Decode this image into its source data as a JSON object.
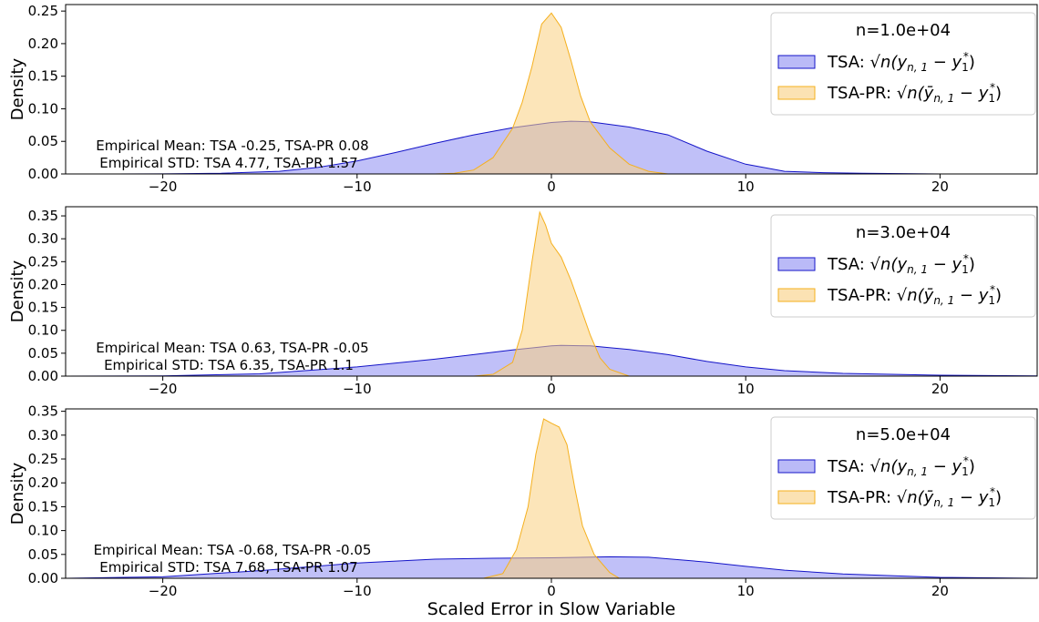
{
  "figure": {
    "xlabel": "Scaled Error in Slow Variable",
    "ylabel": "Density"
  },
  "colors": {
    "tsa_fill": "#8c8cf2",
    "tsa_line": "#1414c8",
    "pr_fill": "#f9cf80",
    "pr_line": "#f5b01e"
  },
  "chart_data": [
    {
      "type": "area",
      "legend_title": "n=1.0e+04",
      "legend_placement": "top-right",
      "xlim": [
        -25,
        25
      ],
      "ylim": [
        0,
        0.26
      ],
      "xticks": [
        -20,
        -10,
        0,
        10,
        20
      ],
      "yticks": [
        0.0,
        0.05,
        0.1,
        0.15,
        0.2,
        0.25
      ],
      "annotations": [
        "Empirical Mean: TSA -0.25, TSA-PR 0.08",
        "Empirical STD: TSA 4.77, TSA-PR 1.57"
      ],
      "series": [
        {
          "name": "TSA: √n(y_{n,1} − y_1^*)",
          "legend_prefix": "TSA: ",
          "legend_main": "√n(y",
          "legend_sub": "n, 1",
          "legend_rest": " − y",
          "legend_sub2": "1",
          "legend_sup2": "*",
          "legend_end": ")",
          "x": [
            -25,
            -20,
            -17,
            -14,
            -12,
            -10,
            -8,
            -6,
            -4,
            -2,
            0,
            1,
            2,
            4,
            6,
            8,
            10,
            12,
            14,
            16,
            18,
            20,
            25
          ],
          "y": [
            0.0,
            0.0002,
            0.001,
            0.004,
            0.01,
            0.02,
            0.033,
            0.047,
            0.06,
            0.071,
            0.079,
            0.081,
            0.08,
            0.072,
            0.06,
            0.035,
            0.015,
            0.004,
            0.002,
            0.001,
            0.0005,
            0.0,
            0.0
          ]
        },
        {
          "name": "TSA-PR: √n(ȳ_{n,1} − y_1^*)",
          "legend_prefix": "TSA-PR: ",
          "legend_main": "√n(ȳ",
          "legend_sub": "n, 1",
          "legend_rest": " − y",
          "legend_sub2": "1",
          "legend_sup2": "*",
          "legend_end": ")",
          "x": [
            -25,
            -6,
            -5,
            -4,
            -3,
            -2,
            -1.5,
            -1,
            -0.5,
            0,
            0.5,
            1,
            1.5,
            2,
            3,
            4,
            5,
            6,
            25
          ],
          "y": [
            0.0,
            0.0,
            0.001,
            0.006,
            0.025,
            0.07,
            0.11,
            0.165,
            0.23,
            0.247,
            0.225,
            0.175,
            0.12,
            0.08,
            0.04,
            0.015,
            0.004,
            0.0,
            0.0
          ]
        }
      ]
    },
    {
      "type": "area",
      "legend_title": "n=3.0e+04",
      "legend_placement": "top-right",
      "xlim": [
        -25,
        25
      ],
      "ylim": [
        0,
        0.37
      ],
      "xticks": [
        -20,
        -10,
        0,
        10,
        20
      ],
      "yticks": [
        0.0,
        0.05,
        0.1,
        0.15,
        0.2,
        0.25,
        0.3,
        0.35
      ],
      "annotations": [
        "Empirical Mean: TSA 0.63, TSA-PR -0.05",
        "Empirical STD: TSA 6.35, TSA-PR 1.1"
      ],
      "series": [
        {
          "name": "TSA: √n(y_{n,1} − y_1^*)",
          "legend_prefix": "TSA: ",
          "legend_main": "√n(y",
          "legend_sub": "n, 1",
          "legend_rest": " − y",
          "legend_sub2": "1",
          "legend_sup2": "*",
          "legend_end": ")",
          "x": [
            -25,
            -20,
            -15,
            -10,
            -6,
            -4,
            -2,
            0,
            0.5,
            2,
            4,
            6,
            8,
            10,
            12,
            15,
            20,
            25
          ],
          "y": [
            0.0,
            0.0005,
            0.005,
            0.02,
            0.037,
            0.047,
            0.057,
            0.066,
            0.067,
            0.066,
            0.058,
            0.047,
            0.032,
            0.02,
            0.012,
            0.006,
            0.002,
            0.0005
          ]
        },
        {
          "name": "TSA-PR: √n(ȳ_{n,1} − y_1^*)",
          "legend_prefix": "TSA-PR: ",
          "legend_main": "√n(ȳ",
          "legend_sub": "n, 1",
          "legend_rest": " − y",
          "legend_sub2": "1",
          "legend_sup2": "*",
          "legend_end": ")",
          "x": [
            -25,
            -4,
            -3,
            -2,
            -1.5,
            -1,
            -0.6,
            -0.3,
            0,
            0.5,
            1,
            1.5,
            2,
            2.5,
            3,
            4,
            25
          ],
          "y": [
            0.0,
            0.0,
            0.004,
            0.03,
            0.1,
            0.25,
            0.358,
            0.33,
            0.29,
            0.26,
            0.21,
            0.15,
            0.09,
            0.04,
            0.015,
            0.0,
            0.0
          ]
        }
      ]
    },
    {
      "type": "area",
      "legend_title": "n=5.0e+04",
      "legend_placement": "top-right",
      "xlim": [
        -25,
        25
      ],
      "ylim": [
        0,
        0.355
      ],
      "xticks": [
        -20,
        -10,
        0,
        10,
        20
      ],
      "yticks": [
        0.0,
        0.05,
        0.1,
        0.15,
        0.2,
        0.25,
        0.3,
        0.35
      ],
      "annotations": [
        "Empirical Mean: TSA -0.68, TSA-PR -0.05",
        "Empirical STD: TSA 7.68, TSA-PR 1.07"
      ],
      "series": [
        {
          "name": "TSA: √n(y_{n,1} − y_1^*)",
          "legend_prefix": "TSA: ",
          "legend_main": "√n(y",
          "legend_sub": "n, 1",
          "legend_rest": " − y",
          "legend_sub2": "1",
          "legend_sup2": "*",
          "legend_end": ")",
          "x": [
            -25,
            -20,
            -15,
            -10,
            -6,
            -3,
            0,
            3,
            5,
            8,
            10,
            12,
            15,
            20,
            25
          ],
          "y": [
            0.0,
            0.003,
            0.016,
            0.032,
            0.04,
            0.042,
            0.043,
            0.045,
            0.044,
            0.034,
            0.025,
            0.017,
            0.009,
            0.002,
            0.0
          ]
        },
        {
          "name": "TSA-PR: √n(ȳ_{n,1} − y_1^*)",
          "legend_prefix": "TSA-PR: ",
          "legend_main": "√n(ȳ",
          "legend_sub": "n, 1",
          "legend_rest": " − y",
          "legend_sub2": "1",
          "legend_sup2": "*",
          "legend_end": ")",
          "x": [
            -25,
            -3.5,
            -2.5,
            -1.8,
            -1.2,
            -0.8,
            -0.4,
            0,
            0.4,
            0.8,
            1.2,
            1.6,
            2.2,
            3,
            3.5,
            25
          ],
          "y": [
            0.0,
            0.0,
            0.01,
            0.06,
            0.15,
            0.26,
            0.334,
            0.325,
            0.317,
            0.28,
            0.19,
            0.11,
            0.05,
            0.012,
            0.0,
            0.0
          ]
        }
      ]
    }
  ]
}
